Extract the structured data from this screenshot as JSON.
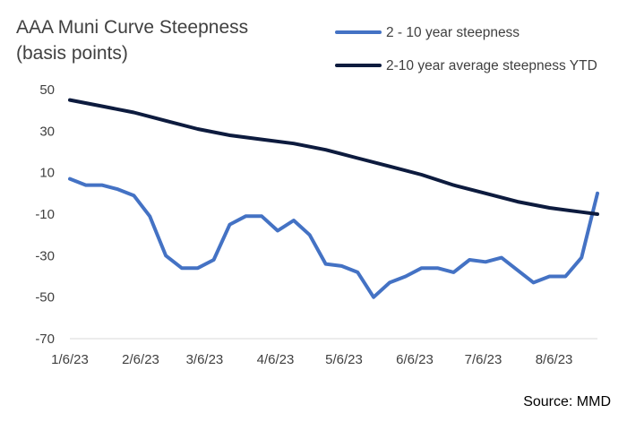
{
  "chart_data": {
    "type": "line",
    "title_lines": [
      "AAA  Muni Curve Steepness",
      "(basis points)"
    ],
    "source": "Source: MMD",
    "ylim": [
      -70,
      50
    ],
    "yticks": [
      50,
      30,
      10,
      -10,
      -30,
      -50,
      -70
    ],
    "xlim": [
      "2023-01-06",
      "2023-08-25"
    ],
    "xticks": [
      {
        "label": "1/6/23",
        "date": "2023-01-06"
      },
      {
        "label": "2/6/23",
        "date": "2023-02-06"
      },
      {
        "label": "3/6/23",
        "date": "2023-03-06"
      },
      {
        "label": "4/6/23",
        "date": "2023-04-06"
      },
      {
        "label": "5/6/23",
        "date": "2023-05-06"
      },
      {
        "label": "6/6/23",
        "date": "2023-06-06"
      },
      {
        "label": "7/6/23",
        "date": "2023-07-06"
      },
      {
        "label": "8/6/23",
        "date": "2023-08-06"
      }
    ],
    "grid": false,
    "legend_position": "top-right",
    "series": [
      {
        "name": "2 - 10 year steepness",
        "color": "#4472C4",
        "points": [
          [
            "2023-01-06",
            7
          ],
          [
            "2023-01-13",
            4
          ],
          [
            "2023-01-20",
            4
          ],
          [
            "2023-01-27",
            2
          ],
          [
            "2023-02-03",
            -1
          ],
          [
            "2023-02-10",
            -11
          ],
          [
            "2023-02-17",
            -30
          ],
          [
            "2023-02-24",
            -36
          ],
          [
            "2023-03-03",
            -36
          ],
          [
            "2023-03-10",
            -32
          ],
          [
            "2023-03-17",
            -15
          ],
          [
            "2023-03-24",
            -11
          ],
          [
            "2023-03-31",
            -11
          ],
          [
            "2023-04-07",
            -18
          ],
          [
            "2023-04-14",
            -13
          ],
          [
            "2023-04-21",
            -20
          ],
          [
            "2023-04-28",
            -34
          ],
          [
            "2023-05-05",
            -35
          ],
          [
            "2023-05-12",
            -38
          ],
          [
            "2023-05-19",
            -50
          ],
          [
            "2023-05-26",
            -43
          ],
          [
            "2023-06-02",
            -40
          ],
          [
            "2023-06-09",
            -36
          ],
          [
            "2023-06-16",
            -36
          ],
          [
            "2023-06-23",
            -38
          ],
          [
            "2023-06-30",
            -32
          ],
          [
            "2023-07-07",
            -33
          ],
          [
            "2023-07-14",
            -31
          ],
          [
            "2023-07-21",
            -37
          ],
          [
            "2023-07-28",
            -43
          ],
          [
            "2023-08-04",
            -40
          ],
          [
            "2023-08-11",
            -40
          ],
          [
            "2023-08-18",
            -31
          ],
          [
            "2023-08-25",
            0
          ]
        ]
      },
      {
        "name": "2-10 year average steepness YTD",
        "color": "#0D1B3E",
        "points": [
          [
            "2023-01-06",
            45
          ],
          [
            "2023-01-20",
            42
          ],
          [
            "2023-02-03",
            39
          ],
          [
            "2023-02-17",
            35
          ],
          [
            "2023-03-03",
            31
          ],
          [
            "2023-03-17",
            28
          ],
          [
            "2023-03-31",
            26
          ],
          [
            "2023-04-14",
            24
          ],
          [
            "2023-04-28",
            21
          ],
          [
            "2023-05-12",
            17
          ],
          [
            "2023-05-26",
            13
          ],
          [
            "2023-06-09",
            9
          ],
          [
            "2023-06-23",
            4
          ],
          [
            "2023-07-07",
            0
          ],
          [
            "2023-07-21",
            -4
          ],
          [
            "2023-08-04",
            -7
          ],
          [
            "2023-08-18",
            -9
          ],
          [
            "2023-08-25",
            -10
          ]
        ]
      }
    ]
  }
}
